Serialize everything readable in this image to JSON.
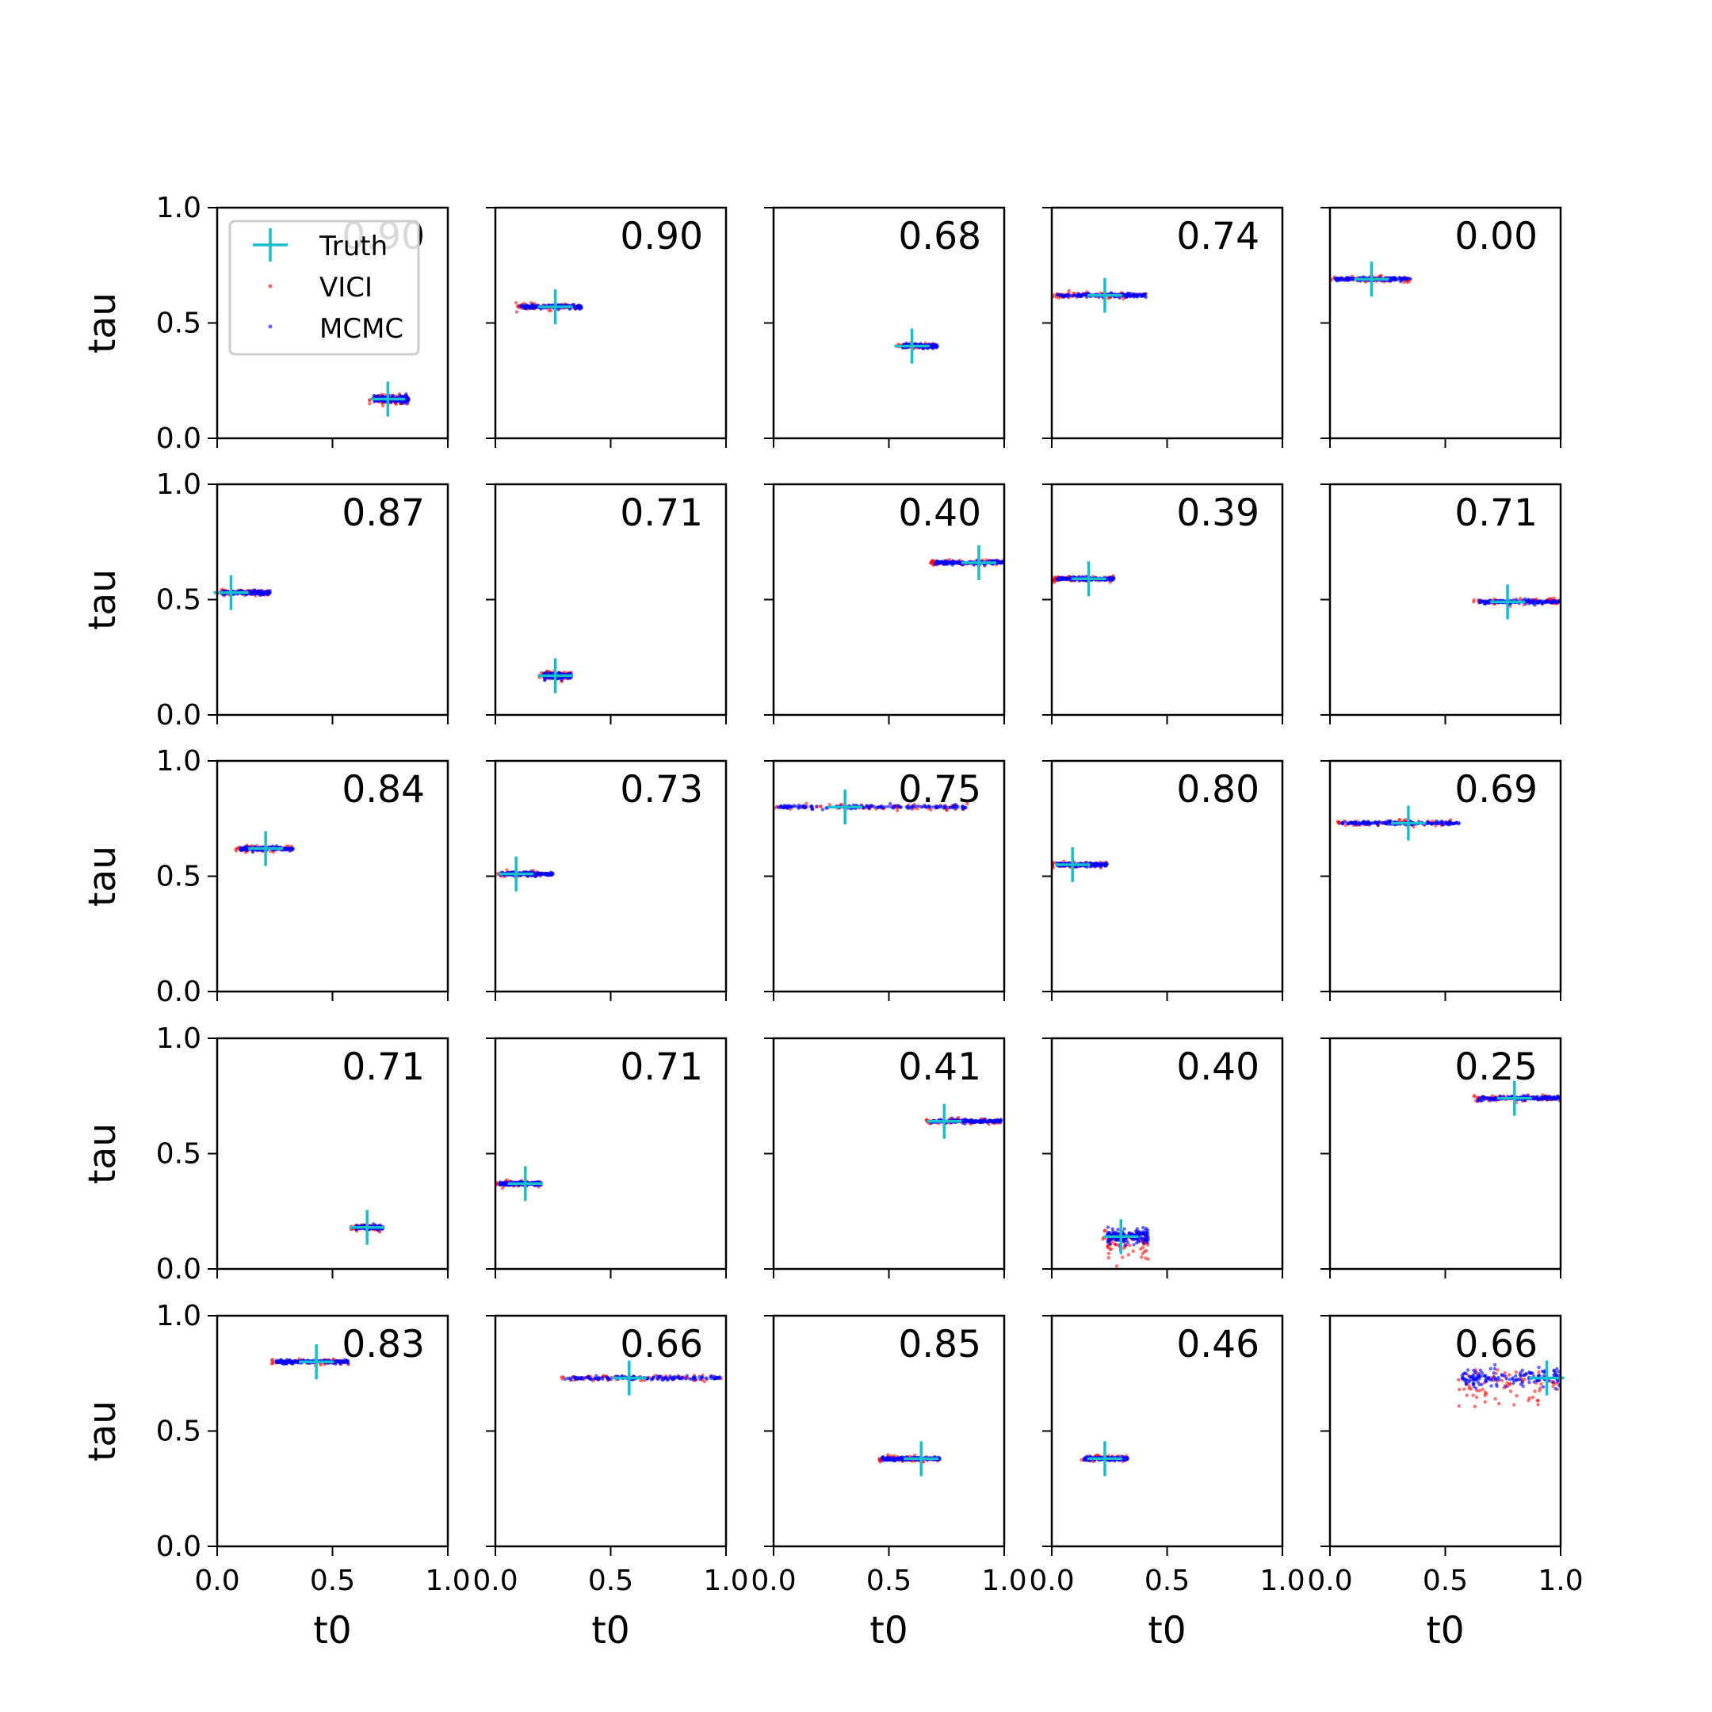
{
  "chart_data": {
    "type": "scatter",
    "rows": 5,
    "cols": 5,
    "xlabel": "t0",
    "ylabel": "tau",
    "xlim": [
      0,
      1
    ],
    "ylim": [
      0,
      1
    ],
    "xticks": [
      "0.0",
      "0.5",
      "1.0"
    ],
    "yticks": [
      "0.0",
      "0.5",
      "1.0"
    ],
    "legend": {
      "location": "upper-left",
      "entries": [
        {
          "label": "Truth",
          "marker": "plus",
          "color": "#17becf"
        },
        {
          "label": "VICI",
          "marker": "dot",
          "color": "#ff0000"
        },
        {
          "label": "MCMC",
          "marker": "dot",
          "color": "#0000ff"
        }
      ]
    },
    "colors": {
      "truth": "#17becf",
      "vici": "#ff0000",
      "mcmc": "#0000ff"
    },
    "panels": [
      {
        "score": "0.90",
        "truth": [
          0.74,
          0.17
        ],
        "t0_range": [
          0.66,
          0.83
        ],
        "tau_spread": 0.015
      },
      {
        "score": "0.90",
        "truth": [
          0.26,
          0.57
        ],
        "t0_range": [
          0.09,
          0.38
        ],
        "tau_spread": 0.008
      },
      {
        "score": "0.68",
        "truth": [
          0.6,
          0.4
        ],
        "t0_range": [
          0.54,
          0.71
        ],
        "tau_spread": 0.008
      },
      {
        "score": "0.74",
        "truth": [
          0.23,
          0.62
        ],
        "t0_range": [
          0.0,
          0.41
        ],
        "tau_spread": 0.008
      },
      {
        "score": "0.00",
        "truth": [
          0.18,
          0.69
        ],
        "t0_range": [
          0.0,
          0.35
        ],
        "tau_spread": 0.008
      },
      {
        "score": "0.87",
        "truth": [
          0.06,
          0.53
        ],
        "t0_range": [
          0.0,
          0.23
        ],
        "tau_spread": 0.008
      },
      {
        "score": "0.71",
        "truth": [
          0.26,
          0.17
        ],
        "t0_range": [
          0.19,
          0.33
        ],
        "tau_spread": 0.012
      },
      {
        "score": "0.40",
        "truth": [
          0.89,
          0.66
        ],
        "t0_range": [
          0.68,
          1.0
        ],
        "tau_spread": 0.008
      },
      {
        "score": "0.39",
        "truth": [
          0.16,
          0.59
        ],
        "t0_range": [
          0.0,
          0.27
        ],
        "tau_spread": 0.008
      },
      {
        "score": "0.71",
        "truth": [
          0.77,
          0.49
        ],
        "t0_range": [
          0.62,
          1.0
        ],
        "tau_spread": 0.008
      },
      {
        "score": "0.84",
        "truth": [
          0.21,
          0.62
        ],
        "t0_range": [
          0.08,
          0.33
        ],
        "tau_spread": 0.008
      },
      {
        "score": "0.73",
        "truth": [
          0.09,
          0.51
        ],
        "t0_range": [
          0.0,
          0.25
        ],
        "tau_spread": 0.008
      },
      {
        "score": "0.75",
        "truth": [
          0.31,
          0.8
        ],
        "t0_range": [
          0.0,
          0.84
        ],
        "tau_spread": 0.008
      },
      {
        "score": "0.80",
        "truth": [
          0.09,
          0.55
        ],
        "t0_range": [
          0.0,
          0.24
        ],
        "tau_spread": 0.008
      },
      {
        "score": "0.69",
        "truth": [
          0.34,
          0.73
        ],
        "t0_range": [
          0.03,
          0.56
        ],
        "tau_spread": 0.008
      },
      {
        "score": "0.71",
        "truth": [
          0.65,
          0.18
        ],
        "t0_range": [
          0.58,
          0.72
        ],
        "tau_spread": 0.008
      },
      {
        "score": "0.71",
        "truth": [
          0.13,
          0.37
        ],
        "t0_range": [
          0.0,
          0.2
        ],
        "tau_spread": 0.008
      },
      {
        "score": "0.41",
        "truth": [
          0.74,
          0.64
        ],
        "t0_range": [
          0.66,
          0.99
        ],
        "tau_spread": 0.008
      },
      {
        "score": "0.40",
        "truth": [
          0.3,
          0.14
        ],
        "t0_range": [
          0.22,
          0.42
        ],
        "tau_spread": 0.03
      },
      {
        "score": "0.25",
        "truth": [
          0.8,
          0.74
        ],
        "t0_range": [
          0.62,
          1.0
        ],
        "tau_spread": 0.008
      },
      {
        "score": "0.83",
        "truth": [
          0.43,
          0.8
        ],
        "t0_range": [
          0.23,
          0.57
        ],
        "tau_spread": 0.008
      },
      {
        "score": "0.66",
        "truth": [
          0.58,
          0.73
        ],
        "t0_range": [
          0.27,
          0.98
        ],
        "tau_spread": 0.008
      },
      {
        "score": "0.85",
        "truth": [
          0.64,
          0.38
        ],
        "t0_range": [
          0.45,
          0.72
        ],
        "tau_spread": 0.008
      },
      {
        "score": "0.46",
        "truth": [
          0.23,
          0.38
        ],
        "t0_range": [
          0.12,
          0.33
        ],
        "tau_spread": 0.008
      },
      {
        "score": "0.66",
        "truth": [
          0.94,
          0.73
        ],
        "t0_range": [
          0.55,
          1.0
        ],
        "tau_spread": 0.04
      }
    ]
  }
}
